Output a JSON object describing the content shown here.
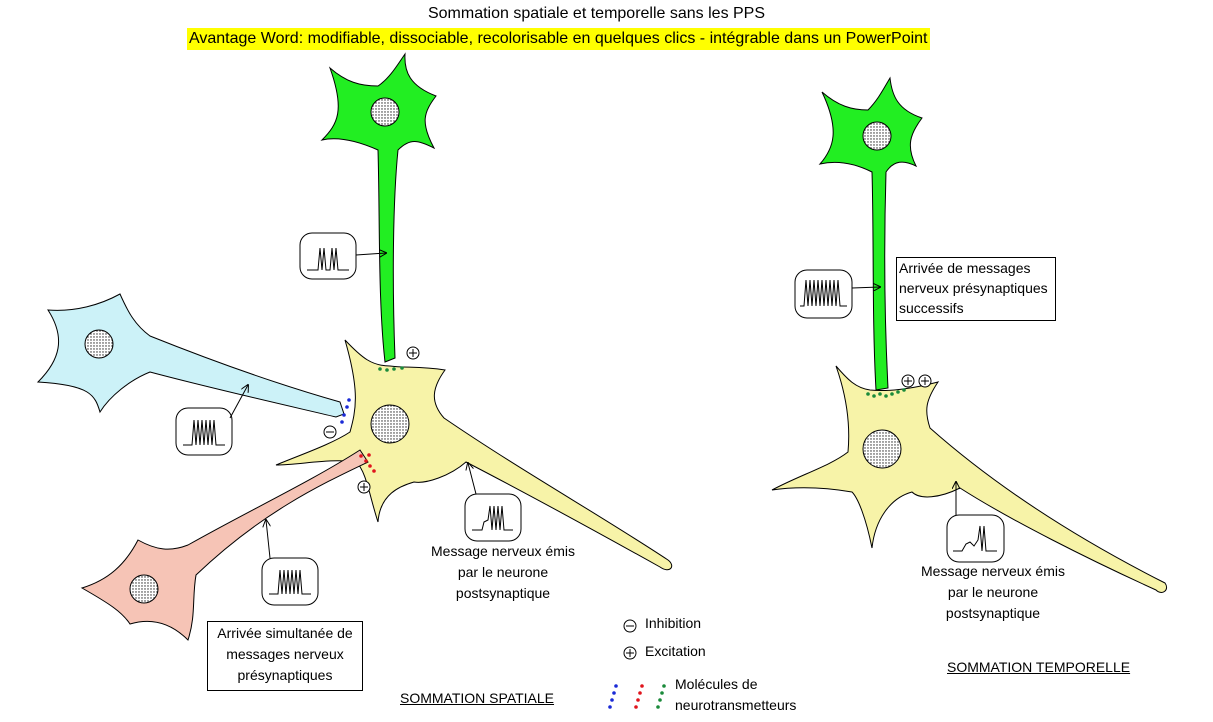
{
  "title": "Sommation spatiale et temporelle sans les PPS",
  "subtitle": "Avantage Word: modifiable, dissociable, recolorisable en quelques clics - intégrable dans un PowerPoint",
  "left_panel": {
    "label": "SOMMATION SPATIALE",
    "presyn_box_line1": "Arrivée simultanée de",
    "presyn_box_line2": "messages nerveux",
    "presyn_box_line3": "présynaptiques",
    "emitted_line1": "Message nerveux  émis",
    "emitted_line2": "par le neurone",
    "emitted_line3": "postsynaptique"
  },
  "right_panel": {
    "label": "SOMMATION TEMPORELLE",
    "presyn_box_line1": "Arrivée de messages",
    "presyn_box_line2": "nerveux  présynaptiques",
    "presyn_box_line3": "successifs",
    "emitted_line1": "Message nerveux  émis",
    "emitted_line2": "par le neurone",
    "emitted_line3": "postsynaptique"
  },
  "legend": {
    "inhibition": "Inhibition",
    "excitation": "Excitation",
    "molecules_line1": "Molécules de",
    "molecules_line2": "neurotransmetteurs"
  },
  "colors": {
    "green_neuron": "#22ee22",
    "blue_neuron": "#ccf2f8",
    "pink_neuron": "#f6c4b6",
    "yellow_neuron": "#f7f3a8",
    "highlight": "#ffff00",
    "dot_blue": "#1a2ad6",
    "dot_red": "#e0141c",
    "dot_green": "#1a8a3a"
  }
}
